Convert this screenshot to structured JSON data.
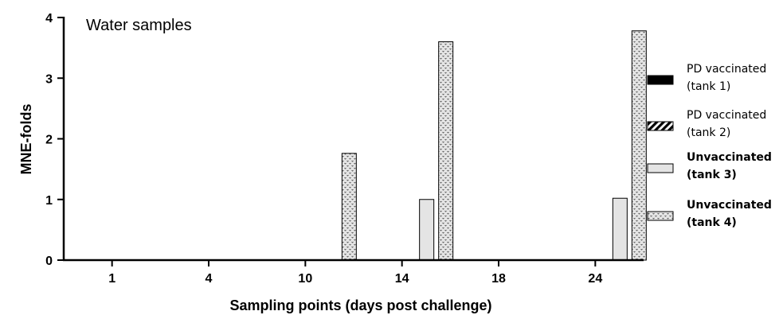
{
  "chart_data": {
    "type": "bar",
    "title": "",
    "annotation": "Water samples",
    "xlabel": "Sampling points (days post challenge)",
    "ylabel": "MNE-folds",
    "categories": [
      "1",
      "4",
      "10",
      "14",
      "18",
      "24"
    ],
    "ylim": [
      0,
      4
    ],
    "yticks": [
      "0",
      "1",
      "2",
      "3",
      "4"
    ],
    "grid": false,
    "legend_position": "right",
    "series": [
      {
        "name_line1": "PD vaccinated",
        "name_line2": "(tank 1)",
        "bold": false,
        "pattern": "solid-black",
        "values": [
          0,
          0,
          0,
          0,
          0,
          0
        ]
      },
      {
        "name_line1": "PD vaccinated",
        "name_line2": "(tank 2)",
        "bold": false,
        "pattern": "diagonal-hatch",
        "values": [
          0,
          0,
          0,
          0,
          0,
          0
        ]
      },
      {
        "name_line1": "Unvaccinated",
        "name_line2": "(tank 3)",
        "bold": true,
        "pattern": "light-gray",
        "values": [
          0,
          0,
          0,
          1.0,
          0,
          1.02
        ]
      },
      {
        "name_line1": "Unvaccinated",
        "name_line2": "(tank 4)",
        "bold": true,
        "pattern": "dotted-speckle",
        "values": [
          0,
          0,
          1.76,
          3.6,
          0,
          3.78
        ]
      }
    ]
  }
}
